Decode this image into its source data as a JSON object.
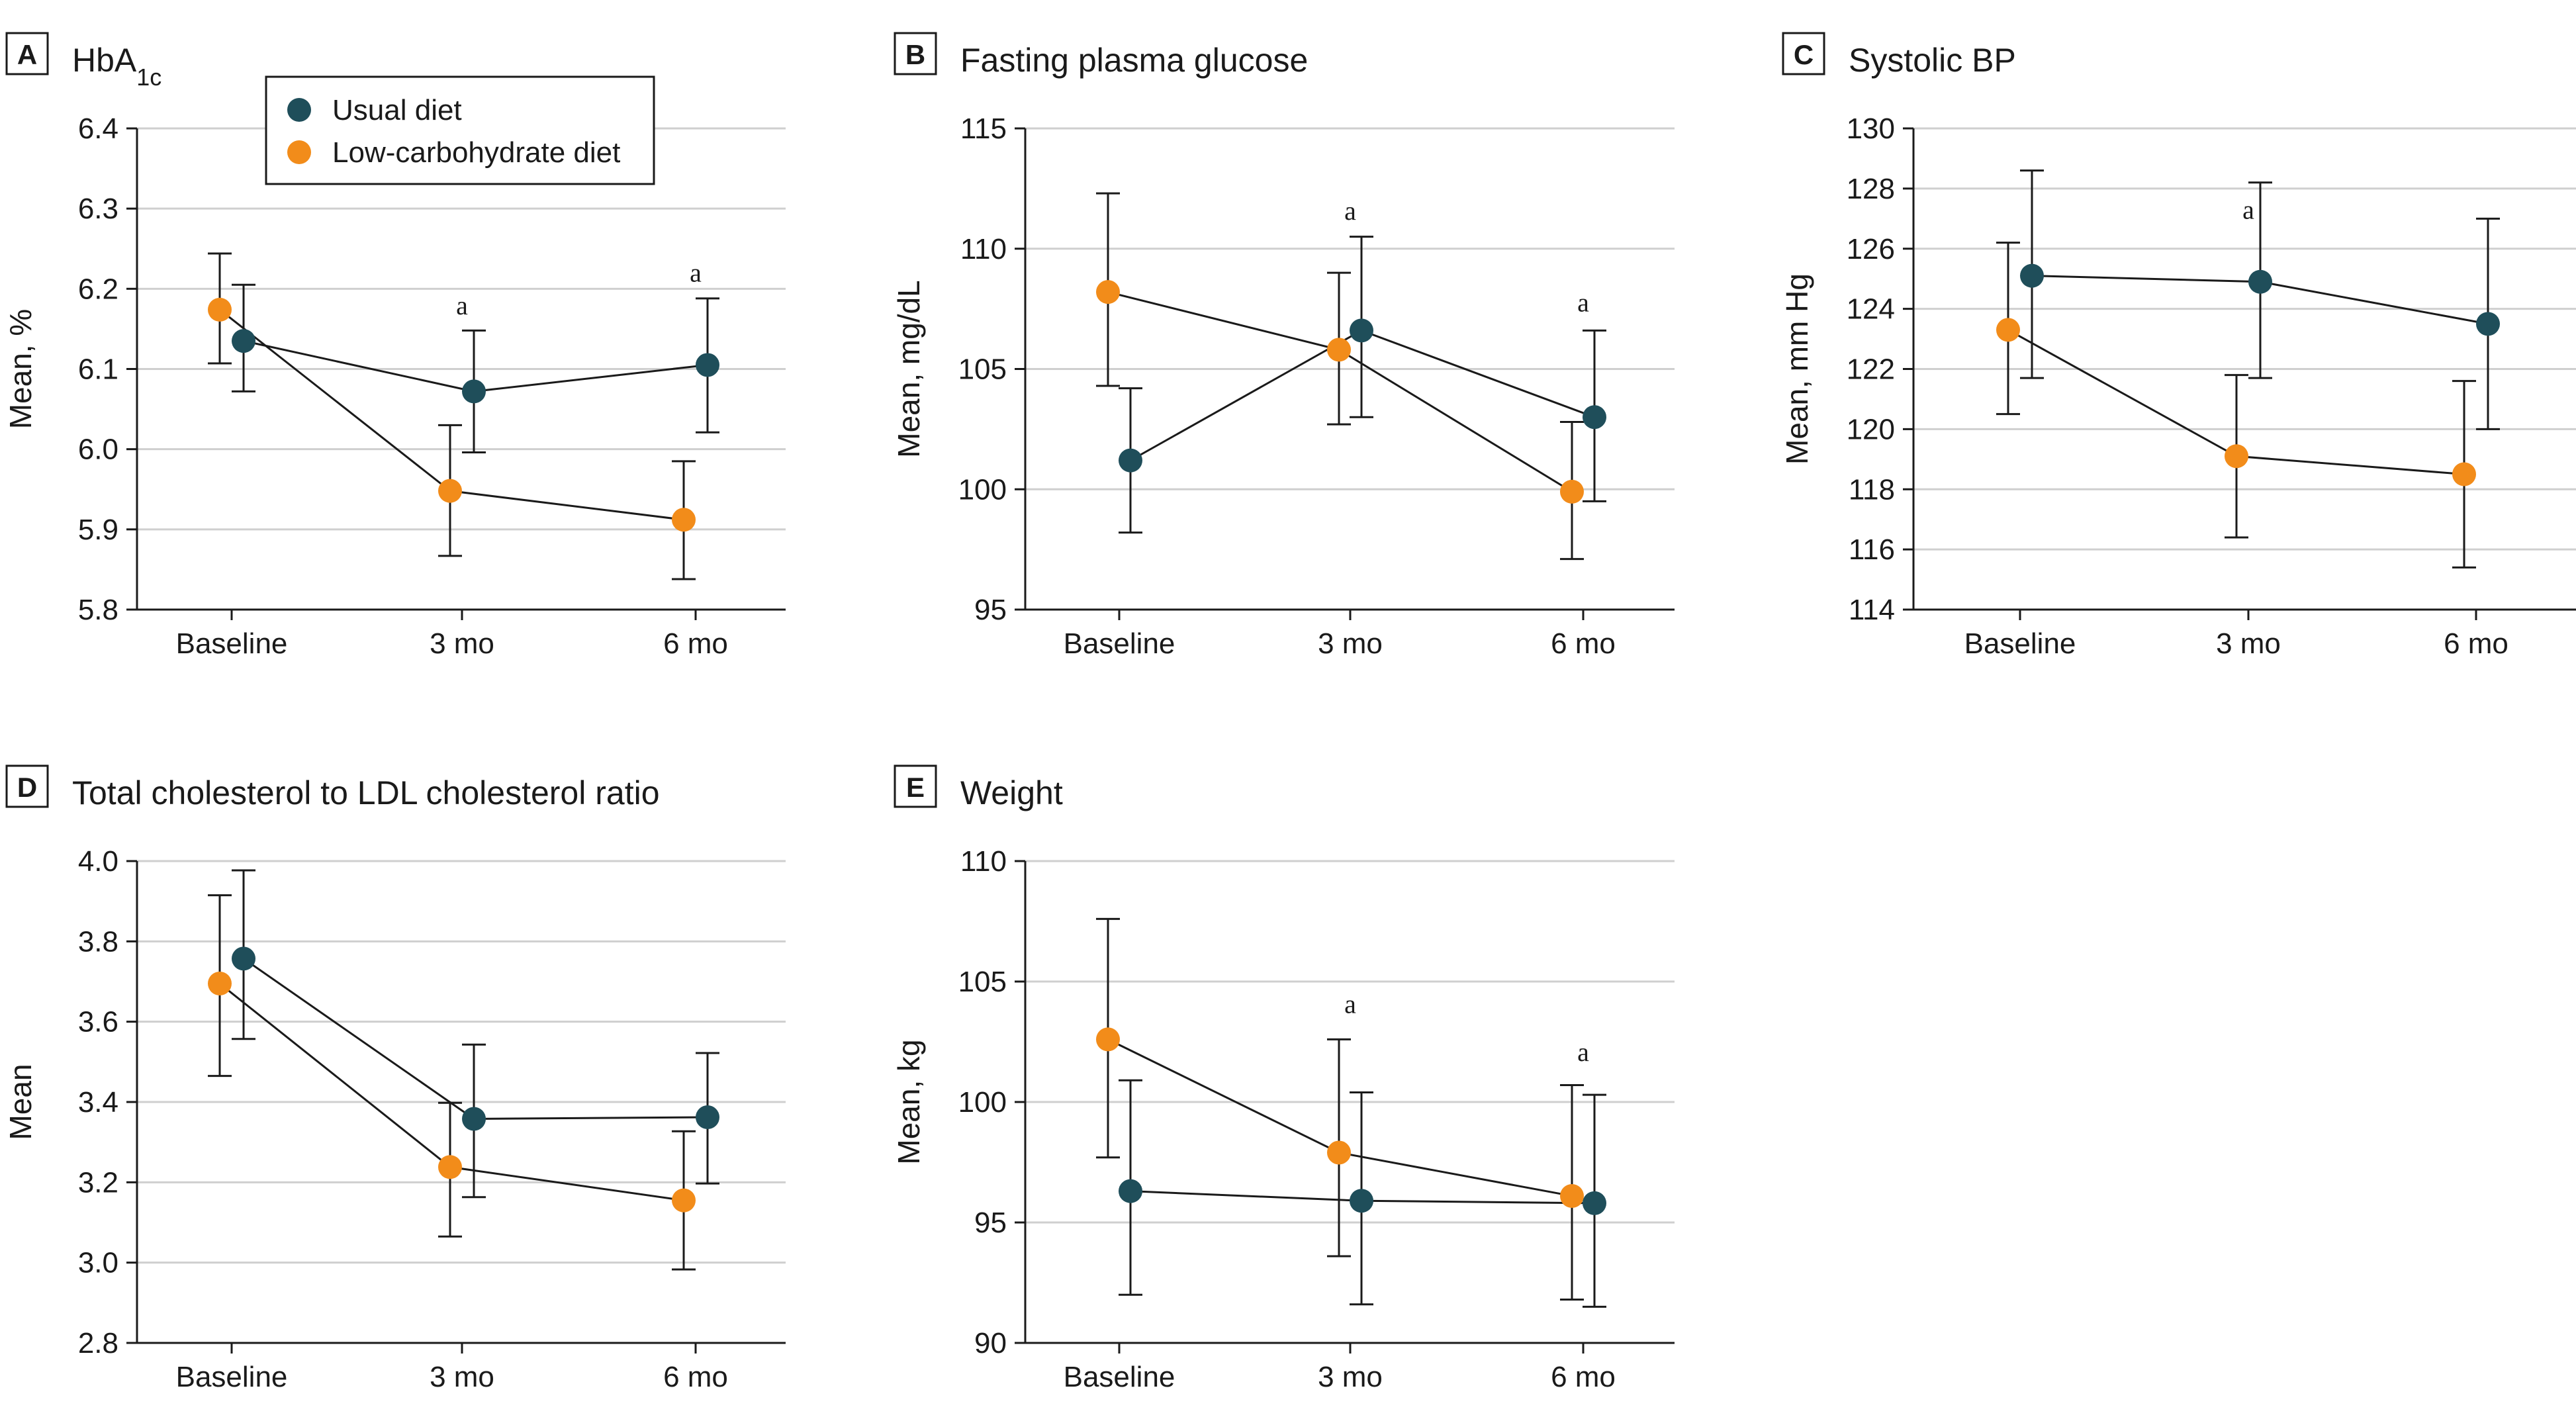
{
  "colors": {
    "usual": "#1f4e5a",
    "lowcarb": "#f28c1a",
    "grid": "#cfcfcf",
    "axis": "#1a1a1a"
  },
  "legend": [
    {
      "label": "Usual diet",
      "color": "#1f4e5a"
    },
    {
      "label": "Low-carbohydrate diet",
      "color": "#f28c1a"
    }
  ],
  "chart_data": [
    {
      "id": "A",
      "letter": "A",
      "type": "line",
      "title": "HbA",
      "title_sub": "1c",
      "title_suffix": "",
      "ylabel": "Mean, %",
      "xlabel": "",
      "categories": [
        "Baseline",
        "3 mo",
        "6 mo"
      ],
      "ylim": [
        5.8,
        6.4
      ],
      "yticks": [
        "5.8",
        "5.9",
        "6.0",
        "6.1",
        "6.2",
        "6.3",
        "6.4"
      ],
      "grid": true,
      "series": [
        {
          "name": "Usual diet",
          "values": [
            6.135,
            6.072,
            6.105
          ],
          "lower": [
            6.072,
            5.996,
            6.021
          ],
          "upper": [
            6.205,
            6.148,
            6.188
          ]
        },
        {
          "name": "Low-carbohydrate diet",
          "values": [
            6.174,
            5.948,
            5.912
          ],
          "lower": [
            6.107,
            5.867,
            5.838
          ],
          "upper": [
            6.244,
            6.03,
            5.985
          ]
        }
      ],
      "annotations": [
        {
          "category": "3 mo",
          "y": 6.168,
          "text": "a"
        },
        {
          "category": "6 mo",
          "y": 6.209,
          "text": "a"
        }
      ]
    },
    {
      "id": "B",
      "letter": "B",
      "type": "line",
      "title": "Fasting plasma glucose",
      "title_sub": "",
      "title_suffix": "",
      "ylabel": "Mean, mg/dL",
      "xlabel": "",
      "categories": [
        "Baseline",
        "3 mo",
        "6 mo"
      ],
      "ylim": [
        95,
        115
      ],
      "yticks": [
        "95",
        "100",
        "105",
        "110",
        "115"
      ],
      "grid": true,
      "series": [
        {
          "name": "Usual diet",
          "values": [
            101.2,
            106.6,
            103.0
          ],
          "lower": [
            98.2,
            103.0,
            99.5
          ],
          "upper": [
            104.2,
            110.5,
            106.6
          ]
        },
        {
          "name": "Low-carbohydrate diet",
          "values": [
            108.2,
            105.8,
            99.9
          ],
          "lower": [
            104.3,
            102.7,
            97.1
          ],
          "upper": [
            112.3,
            109.0,
            102.8
          ]
        }
      ],
      "annotations": [
        {
          "category": "3 mo",
          "y": 111.2,
          "text": "a"
        },
        {
          "category": "6 mo",
          "y": 107.4,
          "text": "a"
        }
      ]
    },
    {
      "id": "C",
      "letter": "C",
      "type": "line",
      "title": "Systolic BP",
      "title_sub": "",
      "title_suffix": "",
      "ylabel": "Mean, mm Hg",
      "xlabel": "",
      "categories": [
        "Baseline",
        "3 mo",
        "6 mo"
      ],
      "ylim": [
        114,
        130
      ],
      "yticks": [
        "114",
        "116",
        "118",
        "120",
        "122",
        "124",
        "126",
        "128",
        "130"
      ],
      "grid": true,
      "series": [
        {
          "name": "Usual diet",
          "values": [
            125.1,
            124.9,
            123.5
          ],
          "lower": [
            121.7,
            121.7,
            120.0
          ],
          "upper": [
            128.6,
            128.2,
            127.0
          ]
        },
        {
          "name": "Low-carbohydrate diet",
          "values": [
            123.3,
            119.1,
            118.5
          ],
          "lower": [
            120.5,
            116.4,
            115.4
          ],
          "upper": [
            126.2,
            121.8,
            121.6
          ]
        }
      ],
      "annotations": [
        {
          "category": "3 mo",
          "y": 127.0,
          "text": "a"
        }
      ]
    },
    {
      "id": "D",
      "letter": "D",
      "type": "line",
      "title": "Total cholesterol to LDL cholesterol ratio",
      "title_sub": "",
      "title_suffix": "",
      "ylabel": "Mean",
      "xlabel": "",
      "categories": [
        "Baseline",
        "3 mo",
        "6 mo"
      ],
      "ylim": [
        2.8,
        4.0
      ],
      "yticks": [
        "2.8",
        "3.0",
        "3.2",
        "3.4",
        "3.6",
        "3.8",
        "4.0"
      ],
      "grid": true,
      "series": [
        {
          "name": "Usual diet",
          "values": [
            3.757,
            3.358,
            3.362
          ],
          "lower": [
            3.557,
            3.163,
            3.197
          ],
          "upper": [
            3.977,
            3.543,
            3.522
          ]
        },
        {
          "name": "Low-carbohydrate diet",
          "values": [
            3.695,
            3.238,
            3.155
          ],
          "lower": [
            3.465,
            3.065,
            2.983
          ],
          "upper": [
            3.915,
            3.398,
            3.327
          ]
        }
      ],
      "annotations": []
    },
    {
      "id": "E",
      "letter": "E",
      "type": "line",
      "title": "Weight",
      "title_sub": "",
      "title_suffix": "",
      "ylabel": "Mean, kg",
      "xlabel": "",
      "categories": [
        "Baseline",
        "3 mo",
        "6 mo"
      ],
      "ylim": [
        90,
        110
      ],
      "yticks": [
        "90",
        "95",
        "100",
        "105",
        "110"
      ],
      "grid": true,
      "series": [
        {
          "name": "Usual diet",
          "values": [
            96.3,
            95.9,
            95.8
          ],
          "lower": [
            92.0,
            91.6,
            91.5
          ],
          "upper": [
            100.9,
            100.4,
            100.3
          ]
        },
        {
          "name": "Low-carbohydrate diet",
          "values": [
            102.6,
            97.9,
            96.1
          ],
          "lower": [
            97.7,
            93.6,
            91.8
          ],
          "upper": [
            107.6,
            102.6,
            100.7
          ]
        }
      ],
      "annotations": [
        {
          "category": "3 mo",
          "y": 103.7,
          "text": "a"
        },
        {
          "category": "6 mo",
          "y": 101.7,
          "text": "a"
        }
      ]
    }
  ]
}
